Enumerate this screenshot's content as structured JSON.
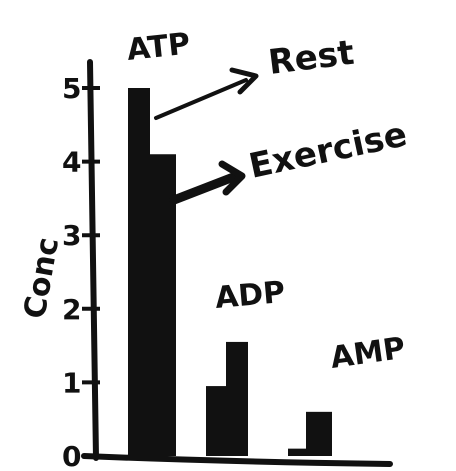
{
  "chart_data": {
    "type": "bar",
    "categories": [
      "ATP",
      "ADP",
      "AMP"
    ],
    "series": [
      {
        "name": "Rest",
        "values": [
          5.0,
          0.95,
          0.1
        ]
      },
      {
        "name": "Exercise",
        "values": [
          4.1,
          1.55,
          0.6
        ]
      }
    ],
    "ylabel": "Conc",
    "xlabel": "",
    "yticks": [
      "0",
      "1",
      "2",
      "3",
      "4",
      "5"
    ],
    "ylim": [
      0,
      5.2
    ],
    "grid": false,
    "legend": "arrow labels near ATP bars"
  },
  "colors": {
    "bar": "#111111",
    "axis": "#111111"
  }
}
